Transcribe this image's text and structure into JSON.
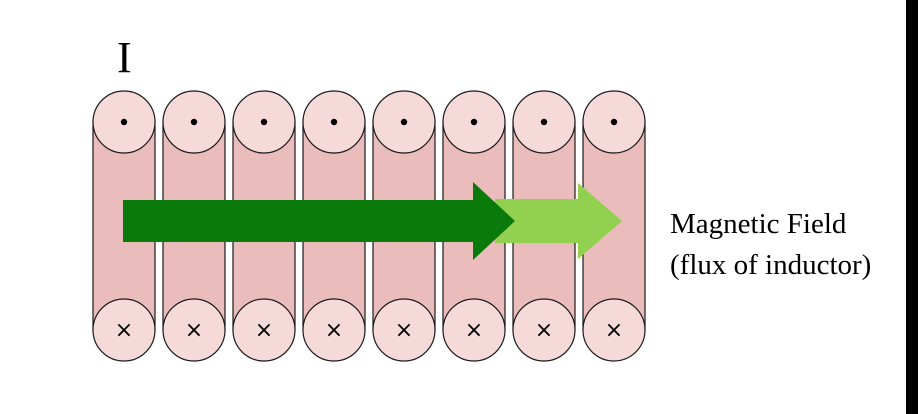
{
  "current_label": "I",
  "field_label_line1": "Magnetic Field",
  "field_label_line2": "(flux of inductor)",
  "coil": {
    "turns": 8,
    "top_symbol": "dot",
    "bottom_symbol": "×"
  },
  "colors": {
    "background": "#ffffff",
    "coil_body": "#ebbcbc",
    "coil_end": "#f6dada",
    "outline": "#1a1a1a",
    "arrow_dark": "#0a7a0a",
    "arrow_light": "#92d050",
    "right_edge_bar": "#000000"
  },
  "icons": {
    "top_end": "current-out-of-page-dot-icon",
    "bottom_end": "current-into-page-cross-icon",
    "arrow_main": "magnetic-field-arrow-icon",
    "arrow_extension": "magnetic-field-extension-arrow-icon"
  }
}
